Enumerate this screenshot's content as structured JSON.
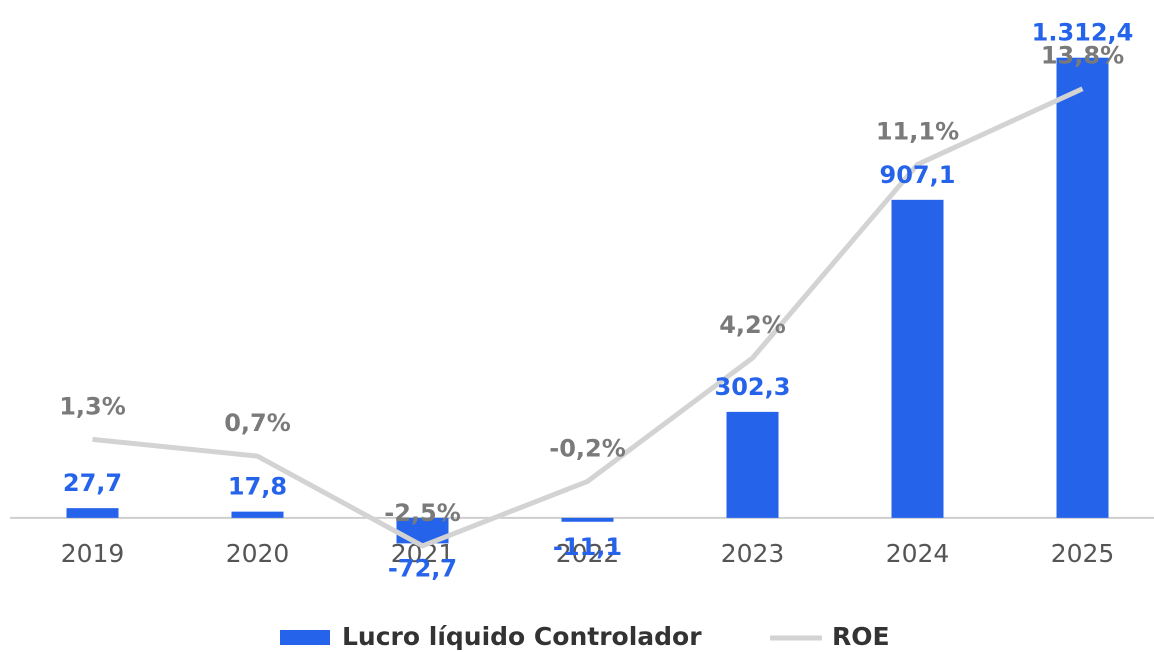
{
  "chart_data": {
    "type": "bar-line",
    "categories": [
      "2019",
      "2020",
      "2021",
      "2022",
      "2023",
      "2024",
      "2025"
    ],
    "series": [
      {
        "name": "Lucro líquido Controlador",
        "type": "bar",
        "color": "#2563eb",
        "values": [
          27.7,
          17.8,
          -72.7,
          -11.1,
          302.3,
          907.1,
          1312.4
        ],
        "value_labels": [
          "27,7",
          "17,8",
          "-72,7",
          "-11,1",
          "302,3",
          "907,1",
          "1.312,4"
        ]
      },
      {
        "name": "ROE",
        "type": "line",
        "axis": "y2",
        "color": "#d3d3d3",
        "values": [
          1.3,
          0.7,
          -2.5,
          -0.2,
          4.2,
          11.1,
          13.8
        ],
        "value_labels": [
          "1,3%",
          "0,7%",
          "-2,5%",
          "-0,2%",
          "4,2%",
          "11,1%",
          "13,8%"
        ]
      }
    ],
    "ylim": [
      -200,
      1400
    ],
    "y2lim": [
      -4,
      16
    ]
  }
}
